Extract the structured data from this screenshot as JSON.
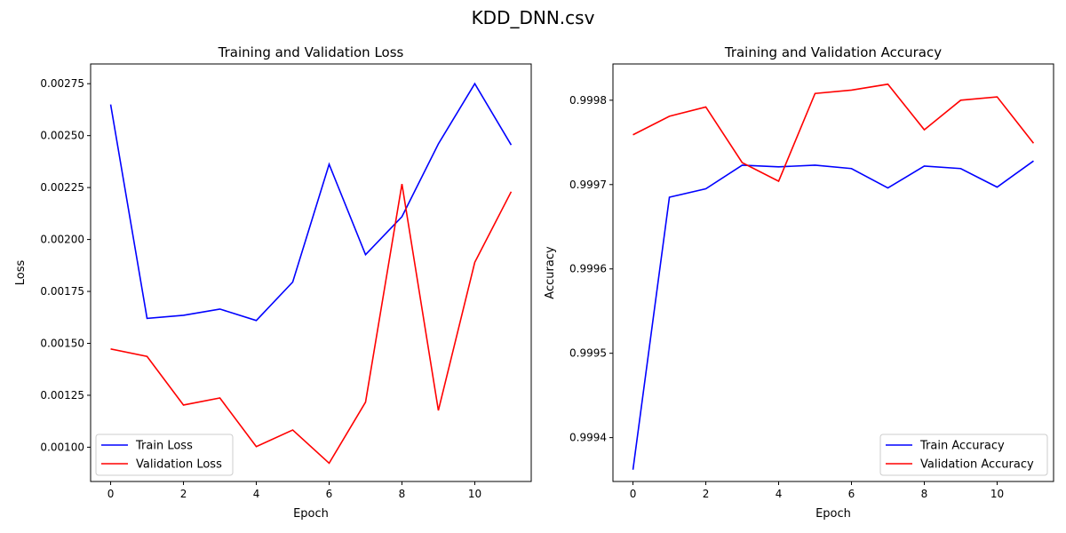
{
  "figure": {
    "title": "KDD_DNN.csv"
  },
  "chart_data": [
    {
      "type": "line",
      "title": "Training and Validation Loss",
      "xlabel": "Epoch",
      "ylabel": "Loss",
      "xlim": [
        -0.55,
        11.55
      ],
      "ylim": [
        0.000835,
        0.002845
      ],
      "xticks": [
        0,
        2,
        4,
        6,
        8,
        10
      ],
      "yticks": [
        0.001,
        0.00125,
        0.0015,
        0.00175,
        0.002,
        0.00225,
        0.0025,
        0.00275
      ],
      "ytick_labels": [
        "0.00100",
        "0.00125",
        "0.00150",
        "0.00175",
        "0.00200",
        "0.00225",
        "0.00250",
        "0.00275"
      ],
      "grid": false,
      "legend_position": "lower-left",
      "x": [
        0,
        1,
        2,
        3,
        4,
        5,
        6,
        7,
        8,
        9,
        10,
        11
      ],
      "series": [
        {
          "name": "Train Loss",
          "color": "#0000ff",
          "values": [
            0.00265,
            0.00162,
            0.001635,
            0.001665,
            0.00161,
            0.001795,
            0.002362,
            0.001927,
            0.00211,
            0.00246,
            0.00275,
            0.002455
          ]
        },
        {
          "name": "Validation Loss",
          "color": "#ff0000",
          "values": [
            0.001473,
            0.001437,
            0.001203,
            0.001237,
            0.001003,
            0.001083,
            0.000923,
            0.001217,
            0.002267,
            0.001177,
            0.00189,
            0.00223
          ]
        }
      ]
    },
    {
      "type": "line",
      "title": "Training and Validation Accuracy",
      "xlabel": "Epoch",
      "ylabel": "Accuracy",
      "xlim": [
        -0.55,
        11.55
      ],
      "ylim": [
        0.999348,
        0.999843
      ],
      "xticks": [
        0,
        2,
        4,
        6,
        8,
        10
      ],
      "yticks": [
        0.9994,
        0.9995,
        0.9996,
        0.9997,
        0.9998
      ],
      "ytick_labels": [
        "0.9994",
        "0.9995",
        "0.9996",
        "0.9997",
        "0.9998"
      ],
      "grid": false,
      "legend_position": "lower-right",
      "x": [
        0,
        1,
        2,
        3,
        4,
        5,
        6,
        7,
        8,
        9,
        10,
        11
      ],
      "series": [
        {
          "name": "Train Accuracy",
          "color": "#0000ff",
          "values": [
            0.999362,
            0.999685,
            0.999695,
            0.999723,
            0.999721,
            0.999723,
            0.999719,
            0.999696,
            0.999722,
            0.999719,
            0.999697,
            0.999728
          ]
        },
        {
          "name": "Validation Accuracy",
          "color": "#ff0000",
          "values": [
            0.999759,
            0.999781,
            0.999792,
            0.999726,
            0.999704,
            0.999808,
            0.999812,
            0.999819,
            0.999765,
            0.9998,
            0.999804,
            0.999749
          ]
        }
      ]
    }
  ]
}
